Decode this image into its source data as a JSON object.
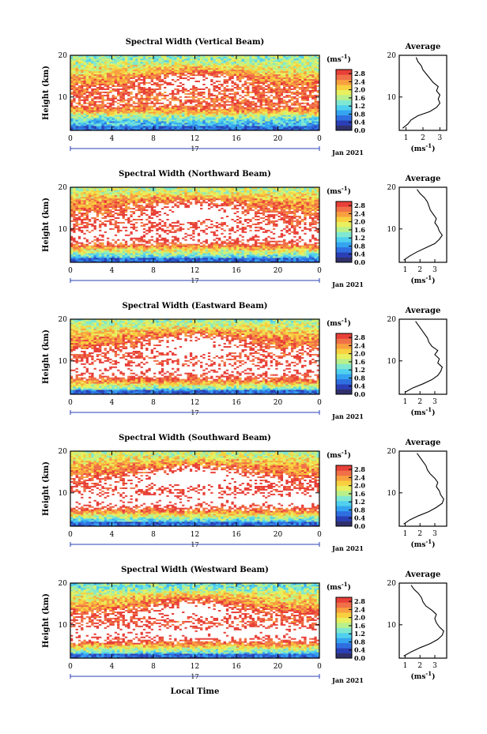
{
  "figure": {
    "xlabel": "Local Time",
    "date_label": "Jan 2021",
    "day_label": "17",
    "colorbar_unit_text": "(ms",
    "colorbar_unit_exp": "-1",
    "colorbar_unit_close": ")",
    "colorbar_ticks": [
      "0.0",
      "0.4",
      "0.8",
      "1.2",
      "1.6",
      "2.0",
      "2.4",
      "2.8"
    ],
    "palette": [
      "#30306a",
      "#2a3fb5",
      "#2f6fe0",
      "#35a4f0",
      "#50d0ee",
      "#80e8d0",
      "#b8f08c",
      "#e8f060",
      "#f8d040",
      "#f8a040",
      "#f07048",
      "#e84038"
    ],
    "saturated_color": "#ffffff"
  },
  "chart_data": [
    {
      "type": "heatmap",
      "title": "Spectral Width (Vertical Beam)",
      "ylabel": "Height (km)",
      "xlabel": "Local Time",
      "x_ticks": [
        "0",
        "4",
        "8",
        "12",
        "16",
        "20",
        "0"
      ],
      "xlim": [
        0,
        24
      ],
      "y_ticks": [
        "10",
        "20"
      ],
      "ylim": [
        2,
        20
      ],
      "clim": [
        0.0,
        3.0
      ],
      "units": "ms-1",
      "profile": {
        "title": "Average",
        "x_ticks": [
          "1",
          "2",
          "3"
        ],
        "xlabel": "(ms-1)",
        "xlim": [
          0.6,
          3.4
        ],
        "height": [
          2.5,
          3.5,
          4.5,
          5.5,
          6.5,
          7.5,
          8.5,
          9.5,
          10.5,
          11.5,
          12.5,
          13.5,
          14.5,
          15.5,
          16.5,
          17.5,
          18.5,
          19.5
        ],
        "mean": [
          0.8,
          1.1,
          1.3,
          1.7,
          2.4,
          2.8,
          3.0,
          2.9,
          3.0,
          2.8,
          2.9,
          2.6,
          2.4,
          2.2,
          2.0,
          1.9,
          1.7,
          1.6
        ]
      }
    },
    {
      "type": "heatmap",
      "title": "Spectral Width (Northward Beam)",
      "ylabel": "Height (km)",
      "xlabel": "Local Time",
      "x_ticks": [
        "0",
        "4",
        "8",
        "12",
        "16",
        "20",
        "0"
      ],
      "xlim": [
        0,
        24
      ],
      "y_ticks": [
        "10",
        "20"
      ],
      "ylim": [
        2,
        20
      ],
      "clim": [
        0.0,
        3.0
      ],
      "units": "ms-1",
      "profile": {
        "title": "Average",
        "x_ticks": [
          "1",
          "2",
          "3"
        ],
        "xlabel": "(ms-1)",
        "xlim": [
          0.6,
          3.8
        ],
        "height": [
          2.5,
          3.5,
          4.5,
          5.5,
          6.5,
          7.5,
          8.5,
          9.5,
          10.5,
          11.5,
          12.5,
          13.5,
          14.5,
          15.5,
          16.5,
          17.5,
          18.5,
          19.5
        ],
        "mean": [
          0.9,
          1.3,
          1.8,
          2.4,
          3.0,
          3.3,
          3.5,
          3.3,
          3.2,
          3.0,
          3.1,
          2.9,
          2.7,
          2.6,
          2.5,
          2.3,
          2.0,
          1.8
        ]
      }
    },
    {
      "type": "heatmap",
      "title": "Spectral Width (Eastward Beam)",
      "ylabel": "Height (km)",
      "xlabel": "Local Time",
      "x_ticks": [
        "0",
        "4",
        "8",
        "12",
        "16",
        "20",
        "0"
      ],
      "xlim": [
        0,
        24
      ],
      "y_ticks": [
        "10",
        "20"
      ],
      "ylim": [
        2,
        20
      ],
      "clim": [
        0.0,
        3.0
      ],
      "units": "ms-1",
      "profile": {
        "title": "Average",
        "x_ticks": [
          "1",
          "2",
          "3"
        ],
        "xlabel": "(ms-1)",
        "xlim": [
          0.6,
          3.8
        ],
        "height": [
          2.5,
          3.5,
          4.5,
          5.5,
          6.5,
          7.5,
          8.5,
          9.5,
          10.5,
          11.5,
          12.5,
          13.5,
          14.5,
          15.5,
          16.5,
          17.5,
          18.5,
          19.5
        ],
        "mean": [
          1.0,
          1.5,
          2.2,
          2.8,
          3.2,
          3.4,
          3.5,
          3.2,
          3.3,
          3.0,
          3.2,
          2.8,
          2.6,
          2.5,
          2.3,
          2.1,
          1.9,
          1.7
        ]
      }
    },
    {
      "type": "heatmap",
      "title": "Spectral Width (Southward Beam)",
      "ylabel": "Height (km)",
      "xlabel": "Local Time",
      "x_ticks": [
        "0",
        "4",
        "8",
        "12",
        "16",
        "20",
        "0"
      ],
      "xlim": [
        0,
        24
      ],
      "y_ticks": [
        "10",
        "20"
      ],
      "ylim": [
        2,
        20
      ],
      "clim": [
        0.0,
        3.0
      ],
      "units": "ms-1",
      "profile": {
        "title": "Average",
        "x_ticks": [
          "1",
          "2",
          "3"
        ],
        "xlabel": "(ms-1)",
        "xlim": [
          0.6,
          3.8
        ],
        "height": [
          2.5,
          3.5,
          4.5,
          5.5,
          6.5,
          7.5,
          8.5,
          9.5,
          10.5,
          11.5,
          12.5,
          13.5,
          14.5,
          15.5,
          16.5,
          17.5,
          18.5,
          19.5
        ],
        "mean": [
          0.9,
          1.3,
          1.9,
          2.6,
          3.1,
          3.5,
          3.6,
          3.4,
          3.3,
          3.1,
          3.2,
          3.0,
          2.7,
          2.5,
          2.4,
          2.2,
          2.0,
          1.8
        ]
      }
    },
    {
      "type": "heatmap",
      "title": "Spectral Width (Westward Beam)",
      "ylabel": "Height (km)",
      "xlabel": "Local Time",
      "x_ticks": [
        "0",
        "4",
        "8",
        "12",
        "16",
        "20",
        "0"
      ],
      "xlim": [
        0,
        24
      ],
      "y_ticks": [
        "10",
        "20"
      ],
      "ylim": [
        2,
        20
      ],
      "clim": [
        0.0,
        3.0
      ],
      "units": "ms-1",
      "profile": {
        "title": "Average",
        "x_ticks": [
          "1",
          "2",
          "3"
        ],
        "xlabel": "(ms-1)",
        "xlim": [
          0.6,
          3.8
        ],
        "height": [
          2.5,
          3.5,
          4.5,
          5.5,
          6.5,
          7.5,
          8.5,
          9.5,
          10.5,
          11.5,
          12.5,
          13.5,
          14.5,
          15.5,
          16.5,
          17.5,
          18.5,
          19.5
        ],
        "mean": [
          0.9,
          1.4,
          2.0,
          2.7,
          3.2,
          3.5,
          3.6,
          3.3,
          3.1,
          3.0,
          3.1,
          2.8,
          2.4,
          2.2,
          2.1,
          1.9,
          1.6,
          1.4
        ]
      }
    }
  ]
}
